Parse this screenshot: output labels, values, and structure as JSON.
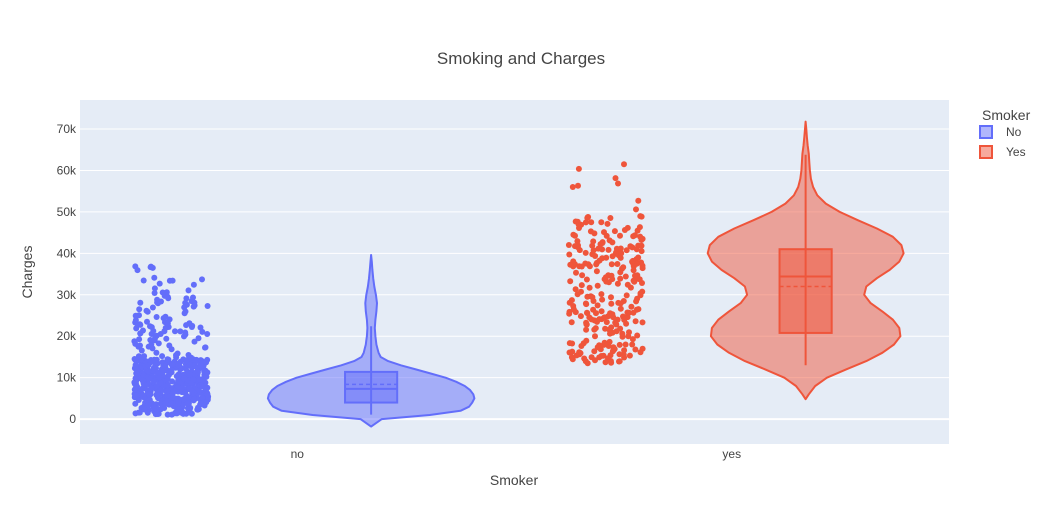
{
  "chart_data": {
    "type": "violin",
    "title": "Smoking and Charges",
    "xlabel": "Smoker",
    "ylabel": "Charges",
    "categories": [
      "no",
      "yes"
    ],
    "ylim": [
      -6000,
      77000
    ],
    "yticks": [
      {
        "value": 0,
        "label": "0"
      },
      {
        "value": 10000,
        "label": "10k"
      },
      {
        "value": 20000,
        "label": "20k"
      },
      {
        "value": 30000,
        "label": "30k"
      },
      {
        "value": 40000,
        "label": "40k"
      },
      {
        "value": 50000,
        "label": "50k"
      },
      {
        "value": 60000,
        "label": "60k"
      },
      {
        "value": 70000,
        "label": "70k"
      }
    ],
    "grid": true,
    "legend": {
      "title": "Smoker",
      "position": "top-right",
      "items": [
        {
          "label": "No",
          "color": "#636efa"
        },
        {
          "label": "Yes",
          "color": "#ef553b"
        }
      ]
    },
    "series": [
      {
        "name": "No",
        "category": "no",
        "color": "#636efa",
        "box": {
          "min": 1100,
          "q1": 4000,
          "median": 7300,
          "mean": 8400,
          "q3": 11400,
          "upper_fence": 22400
        },
        "range": [
          -1800,
          39600
        ],
        "density": [
          [
            -1800,
            0.0
          ],
          [
            0,
            0.1
          ],
          [
            1000,
            0.55
          ],
          [
            2000,
            0.84
          ],
          [
            3000,
            0.92
          ],
          [
            4000,
            0.95
          ],
          [
            5000,
            0.97
          ],
          [
            6000,
            0.96
          ],
          [
            7000,
            0.93
          ],
          [
            8000,
            0.88
          ],
          [
            9000,
            0.8
          ],
          [
            10000,
            0.7
          ],
          [
            11000,
            0.56
          ],
          [
            12000,
            0.42
          ],
          [
            13000,
            0.28
          ],
          [
            14000,
            0.16
          ],
          [
            15000,
            0.09
          ],
          [
            16000,
            0.07
          ],
          [
            17000,
            0.06
          ],
          [
            18000,
            0.05
          ],
          [
            19000,
            0.045
          ],
          [
            20000,
            0.04
          ],
          [
            22000,
            0.035
          ],
          [
            24000,
            0.04
          ],
          [
            26000,
            0.05
          ],
          [
            28000,
            0.055
          ],
          [
            30000,
            0.045
          ],
          [
            32000,
            0.03
          ],
          [
            34000,
            0.02
          ],
          [
            36000,
            0.012
          ],
          [
            38000,
            0.006
          ],
          [
            39600,
            0.0
          ]
        ],
        "points": {
          "count": 560,
          "ranges": [
            [
              1100,
              14500,
              0.8
            ],
            [
              14500,
              30000,
              0.17
            ],
            [
              30000,
              37000,
              0.03
            ]
          ]
        }
      },
      {
        "name": "Yes",
        "category": "yes",
        "color": "#ef553b",
        "box": {
          "min": 13000,
          "q1": 20800,
          "median": 34400,
          "mean": 32000,
          "q3": 41000,
          "upper_fence": 63800
        },
        "range": [
          4800,
          71800
        ],
        "density": [
          [
            4800,
            0.0
          ],
          [
            6000,
            0.03
          ],
          [
            8000,
            0.09
          ],
          [
            10000,
            0.2
          ],
          [
            12000,
            0.38
          ],
          [
            14000,
            0.57
          ],
          [
            16000,
            0.72
          ],
          [
            18000,
            0.83
          ],
          [
            20000,
            0.89
          ],
          [
            22000,
            0.88
          ],
          [
            24000,
            0.82
          ],
          [
            26000,
            0.72
          ],
          [
            28000,
            0.61
          ],
          [
            30000,
            0.55
          ],
          [
            32000,
            0.57
          ],
          [
            34000,
            0.67
          ],
          [
            36000,
            0.79
          ],
          [
            38000,
            0.88
          ],
          [
            40000,
            0.92
          ],
          [
            42000,
            0.9
          ],
          [
            44000,
            0.82
          ],
          [
            46000,
            0.67
          ],
          [
            48000,
            0.49
          ],
          [
            50000,
            0.32
          ],
          [
            52000,
            0.19
          ],
          [
            54000,
            0.11
          ],
          [
            56000,
            0.07
          ],
          [
            58000,
            0.05
          ],
          [
            60000,
            0.04
          ],
          [
            62000,
            0.035
          ],
          [
            64000,
            0.03
          ],
          [
            66000,
            0.02
          ],
          [
            68000,
            0.012
          ],
          [
            70000,
            0.006
          ],
          [
            71800,
            0.0
          ]
        ],
        "points": {
          "count": 270,
          "ranges": [
            [
              13000,
              30000,
              0.48
            ],
            [
              30000,
              49000,
              0.49
            ],
            [
              49000,
              64000,
              0.03
            ]
          ]
        }
      }
    ]
  }
}
